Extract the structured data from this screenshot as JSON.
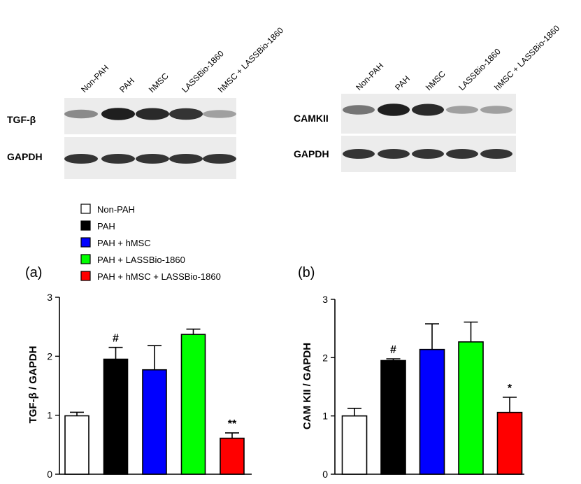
{
  "blots": {
    "left": {
      "lanes": [
        "Non-PAH",
        "PAH",
        "hMSC",
        "LASSBio-1860",
        "hMSC + LASSBio-1860"
      ],
      "rows": [
        "TGF-β",
        "GAPDH"
      ],
      "top_intensity": [
        0.45,
        0.95,
        0.9,
        0.85,
        0.35
      ],
      "bottom_intensity": [
        0.85,
        0.85,
        0.85,
        0.85,
        0.85
      ]
    },
    "right": {
      "lanes": [
        "Non-PAH",
        "PAH",
        "hMSC",
        "LASSBio-1860",
        "hMSC + LASSBio-1860"
      ],
      "rows": [
        "CAMKII",
        "GAPDH"
      ],
      "top_intensity": [
        0.55,
        0.95,
        0.9,
        0.35,
        0.35
      ],
      "bottom_intensity": [
        0.85,
        0.85,
        0.85,
        0.85,
        0.85
      ]
    }
  },
  "legend": [
    {
      "label": "Non-PAH",
      "color": "#ffffff"
    },
    {
      "label": "PAH",
      "color": "#000000"
    },
    {
      "label": "PAH + hMSC",
      "color": "#0000ff"
    },
    {
      "label": "PAH + LASSBio-1860",
      "color": "#00ff00"
    },
    {
      "label": "PAH + hMSC + LASSBio-1860",
      "color": "#ff0000"
    }
  ],
  "chart_data": [
    {
      "type": "bar",
      "panel": "(a)",
      "ylabel": "TGF-β / GAPDH",
      "ylim": [
        0,
        3
      ],
      "yticks": [
        "0",
        "1",
        "2",
        "3"
      ],
      "categories": [
        "Non-PAH",
        "PAH",
        "PAH + hMSC",
        "PAH + LASSBio-1860",
        "PAH + hMSC + LASSBio-1860"
      ],
      "values": [
        0.99,
        1.95,
        1.77,
        2.37,
        0.61
      ],
      "errors": [
        0.06,
        0.2,
        0.41,
        0.09,
        0.09
      ],
      "annotations": [
        "",
        "#",
        "",
        "",
        "**"
      ],
      "colors": [
        "#ffffff",
        "#000000",
        "#0000ff",
        "#00ff00",
        "#ff0000"
      ]
    },
    {
      "type": "bar",
      "panel": "(b)",
      "ylabel": "CAM KII / GAPDH",
      "ylim": [
        0,
        3
      ],
      "yticks": [
        "0",
        "1",
        "2",
        "3"
      ],
      "categories": [
        "Non-PAH",
        "PAH",
        "PAH + hMSC",
        "PAH + LASSBio-1860",
        "PAH + hMSC + LASSBio-1860"
      ],
      "values": [
        1.0,
        1.95,
        2.14,
        2.27,
        1.06
      ],
      "errors": [
        0.13,
        0.03,
        0.44,
        0.34,
        0.26
      ],
      "annotations": [
        "",
        "#",
        "",
        "",
        "*"
      ],
      "colors": [
        "#ffffff",
        "#000000",
        "#0000ff",
        "#00ff00",
        "#ff0000"
      ]
    }
  ]
}
